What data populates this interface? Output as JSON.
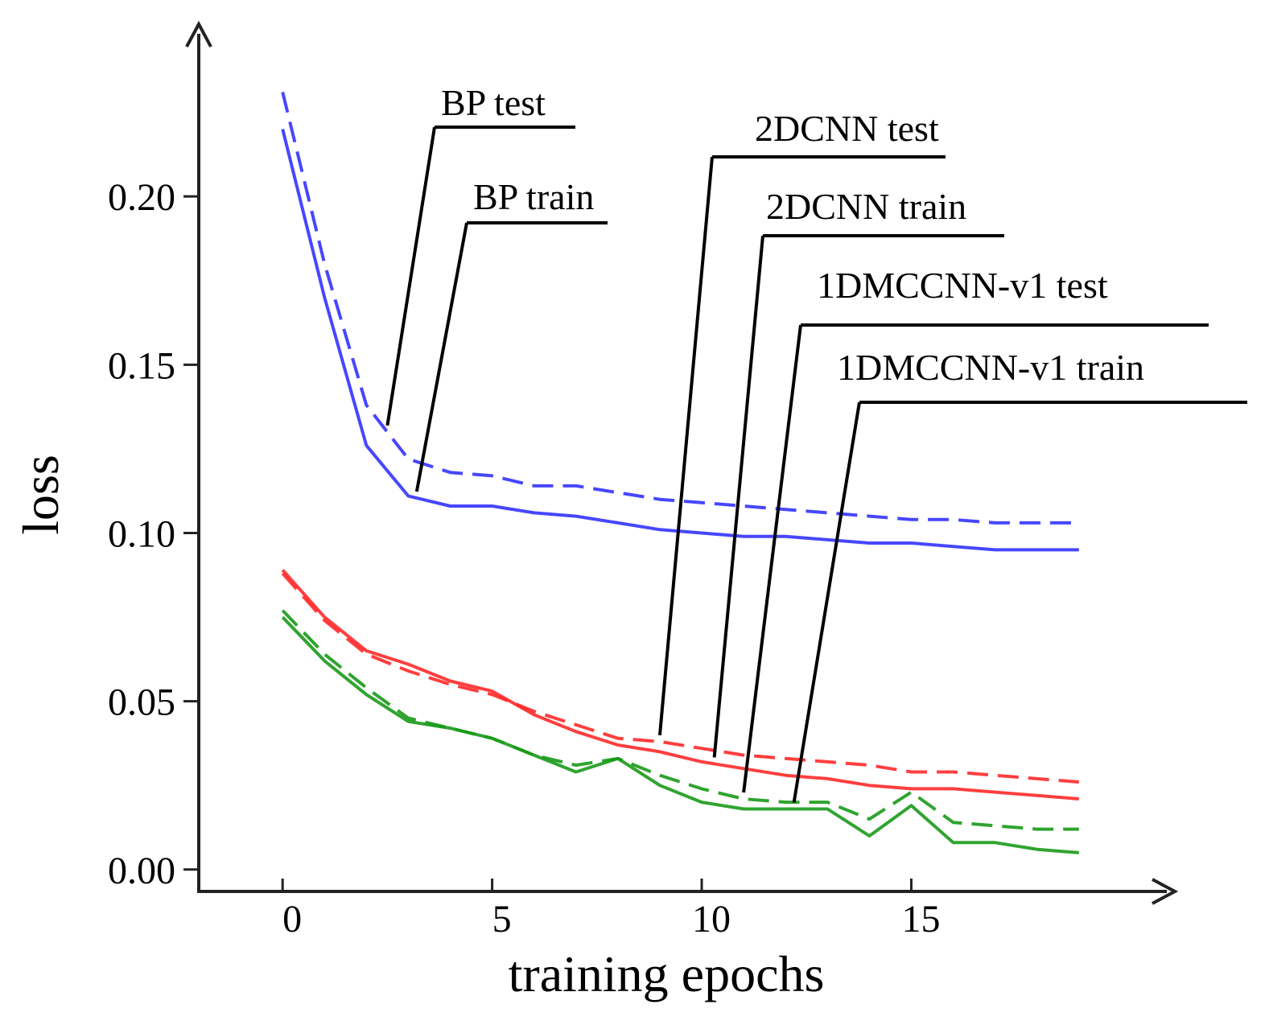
{
  "chart_data": {
    "type": "line",
    "title": "",
    "xlabel": "training epochs",
    "ylabel": "loss",
    "xlim": [
      -2,
      21
    ],
    "ylim": [
      -0.0065,
      0.25
    ],
    "xticks": [
      0,
      5,
      10,
      15
    ],
    "xtick_labels": [
      "0",
      "5",
      "10",
      "15"
    ],
    "yticks": [
      0.0,
      0.05,
      0.1,
      0.15,
      0.2
    ],
    "ytick_labels": [
      "0.00",
      "0.05",
      "0.10",
      "0.15",
      "0.20"
    ],
    "grid": false,
    "x": [
      0,
      1,
      2,
      3,
      4,
      5,
      6,
      7,
      8,
      9,
      10,
      11,
      12,
      13,
      14,
      15,
      16,
      17,
      18,
      19
    ],
    "series": [
      {
        "name": "BP test",
        "color": "#3333ff",
        "dash": true,
        "values": [
          0.231,
          0.18,
          0.138,
          0.122,
          0.118,
          0.117,
          0.114,
          0.114,
          0.112,
          0.11,
          0.109,
          0.108,
          0.107,
          0.106,
          0.105,
          0.104,
          0.104,
          0.103,
          0.103,
          0.103
        ]
      },
      {
        "name": "BP train",
        "color": "#3333ff",
        "dash": false,
        "values": [
          0.22,
          0.17,
          0.126,
          0.111,
          0.108,
          0.108,
          0.106,
          0.105,
          0.103,
          0.101,
          0.1,
          0.099,
          0.099,
          0.098,
          0.097,
          0.097,
          0.096,
          0.095,
          0.095,
          0.095
        ]
      },
      {
        "name": "2DCNN test",
        "color": "#ff2a2a",
        "dash": true,
        "values": [
          0.088,
          0.074,
          0.064,
          0.059,
          0.055,
          0.052,
          0.047,
          0.043,
          0.039,
          0.038,
          0.036,
          0.034,
          0.033,
          0.032,
          0.031,
          0.029,
          0.029,
          0.028,
          0.027,
          0.026
        ]
      },
      {
        "name": "2DCNN train",
        "color": "#ff2a2a",
        "dash": false,
        "values": [
          0.089,
          0.075,
          0.065,
          0.061,
          0.056,
          0.053,
          0.046,
          0.041,
          0.037,
          0.035,
          0.032,
          0.03,
          0.028,
          0.027,
          0.025,
          0.024,
          0.024,
          0.023,
          0.022,
          0.021
        ]
      },
      {
        "name": "1DMCCNN-v1 test",
        "color": "#1a9a1a",
        "dash": true,
        "values": [
          0.077,
          0.064,
          0.054,
          0.045,
          0.042,
          0.039,
          0.034,
          0.031,
          0.033,
          0.028,
          0.024,
          0.021,
          0.02,
          0.02,
          0.015,
          0.023,
          0.014,
          0.013,
          0.012,
          0.012
        ]
      },
      {
        "name": "1DMCCNN-v1 train",
        "color": "#1a9a1a",
        "dash": false,
        "values": [
          0.075,
          0.062,
          0.052,
          0.044,
          0.042,
          0.039,
          0.034,
          0.029,
          0.033,
          0.025,
          0.02,
          0.018,
          0.018,
          0.018,
          0.01,
          0.019,
          0.008,
          0.008,
          0.006,
          0.005
        ]
      }
    ],
    "annotations": [
      {
        "text": "BP test",
        "series": "BP test",
        "epoch": 2.5
      },
      {
        "text": "BP train",
        "series": "BP train",
        "epoch": 3.2
      },
      {
        "text": "2DCNN test",
        "series": "2DCNN test",
        "epoch": 9.0
      },
      {
        "text": "2DCNN train",
        "series": "2DCNN train",
        "epoch": 10.3
      },
      {
        "text": "1DMCCNN-v1 test",
        "series": "1DMCCNN-v1 test",
        "epoch": 11.0
      },
      {
        "text": "1DMCCNN-v1 train",
        "series": "1DMCCNN-v1 train",
        "epoch": 12.2
      }
    ]
  }
}
